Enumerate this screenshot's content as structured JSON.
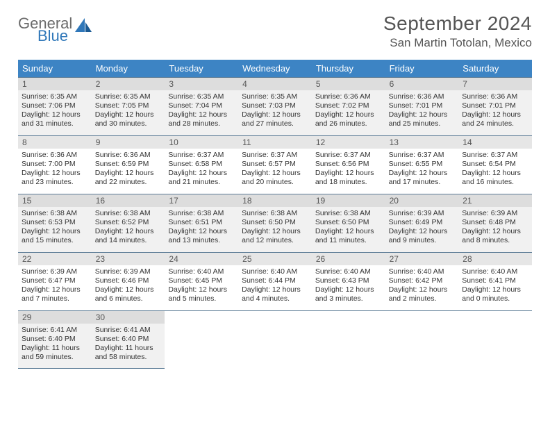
{
  "brand": {
    "word1": "General",
    "word2": "Blue"
  },
  "title": "September 2024",
  "location": "San Martin Totolan, Mexico",
  "day_headers": [
    "Sunday",
    "Monday",
    "Tuesday",
    "Wednesday",
    "Thursday",
    "Friday",
    "Saturday"
  ],
  "colors": {
    "header_bg": "#3d84c4",
    "border": "#5a7a95",
    "shaded": "#f1f1f1",
    "daynum_bg": "#e6e6e6",
    "daynum_bg_shaded": "#dddddd",
    "text": "#333333",
    "title_text": "#555555",
    "logo_gray": "#6a6a6a",
    "logo_blue": "#2f77b9"
  },
  "typography": {
    "title_fontsize": 28,
    "location_fontsize": 17,
    "header_fontsize": 13,
    "daynum_fontsize": 12,
    "detail_fontsize": 10.5
  },
  "layout": {
    "columns": 7,
    "rows": 5,
    "shaded_rows": [
      0,
      2,
      4
    ]
  },
  "days": [
    {
      "n": "1",
      "sr": "6:35 AM",
      "ss": "7:06 PM",
      "dh": "12",
      "dm": "31"
    },
    {
      "n": "2",
      "sr": "6:35 AM",
      "ss": "7:05 PM",
      "dh": "12",
      "dm": "30"
    },
    {
      "n": "3",
      "sr": "6:35 AM",
      "ss": "7:04 PM",
      "dh": "12",
      "dm": "28"
    },
    {
      "n": "4",
      "sr": "6:35 AM",
      "ss": "7:03 PM",
      "dh": "12",
      "dm": "27"
    },
    {
      "n": "5",
      "sr": "6:36 AM",
      "ss": "7:02 PM",
      "dh": "12",
      "dm": "26"
    },
    {
      "n": "6",
      "sr": "6:36 AM",
      "ss": "7:01 PM",
      "dh": "12",
      "dm": "25"
    },
    {
      "n": "7",
      "sr": "6:36 AM",
      "ss": "7:01 PM",
      "dh": "12",
      "dm": "24"
    },
    {
      "n": "8",
      "sr": "6:36 AM",
      "ss": "7:00 PM",
      "dh": "12",
      "dm": "23"
    },
    {
      "n": "9",
      "sr": "6:36 AM",
      "ss": "6:59 PM",
      "dh": "12",
      "dm": "22"
    },
    {
      "n": "10",
      "sr": "6:37 AM",
      "ss": "6:58 PM",
      "dh": "12",
      "dm": "21"
    },
    {
      "n": "11",
      "sr": "6:37 AM",
      "ss": "6:57 PM",
      "dh": "12",
      "dm": "20"
    },
    {
      "n": "12",
      "sr": "6:37 AM",
      "ss": "6:56 PM",
      "dh": "12",
      "dm": "18"
    },
    {
      "n": "13",
      "sr": "6:37 AM",
      "ss": "6:55 PM",
      "dh": "12",
      "dm": "17"
    },
    {
      "n": "14",
      "sr": "6:37 AM",
      "ss": "6:54 PM",
      "dh": "12",
      "dm": "16"
    },
    {
      "n": "15",
      "sr": "6:38 AM",
      "ss": "6:53 PM",
      "dh": "12",
      "dm": "15"
    },
    {
      "n": "16",
      "sr": "6:38 AM",
      "ss": "6:52 PM",
      "dh": "12",
      "dm": "14"
    },
    {
      "n": "17",
      "sr": "6:38 AM",
      "ss": "6:51 PM",
      "dh": "12",
      "dm": "13"
    },
    {
      "n": "18",
      "sr": "6:38 AM",
      "ss": "6:50 PM",
      "dh": "12",
      "dm": "12"
    },
    {
      "n": "19",
      "sr": "6:38 AM",
      "ss": "6:50 PM",
      "dh": "12",
      "dm": "11"
    },
    {
      "n": "20",
      "sr": "6:39 AM",
      "ss": "6:49 PM",
      "dh": "12",
      "dm": "9"
    },
    {
      "n": "21",
      "sr": "6:39 AM",
      "ss": "6:48 PM",
      "dh": "12",
      "dm": "8"
    },
    {
      "n": "22",
      "sr": "6:39 AM",
      "ss": "6:47 PM",
      "dh": "12",
      "dm": "7"
    },
    {
      "n": "23",
      "sr": "6:39 AM",
      "ss": "6:46 PM",
      "dh": "12",
      "dm": "6"
    },
    {
      "n": "24",
      "sr": "6:40 AM",
      "ss": "6:45 PM",
      "dh": "12",
      "dm": "5"
    },
    {
      "n": "25",
      "sr": "6:40 AM",
      "ss": "6:44 PM",
      "dh": "12",
      "dm": "4"
    },
    {
      "n": "26",
      "sr": "6:40 AM",
      "ss": "6:43 PM",
      "dh": "12",
      "dm": "3"
    },
    {
      "n": "27",
      "sr": "6:40 AM",
      "ss": "6:42 PM",
      "dh": "12",
      "dm": "2"
    },
    {
      "n": "28",
      "sr": "6:40 AM",
      "ss": "6:41 PM",
      "dh": "12",
      "dm": "0"
    },
    {
      "n": "29",
      "sr": "6:41 AM",
      "ss": "6:40 PM",
      "dh": "11",
      "dm": "59"
    },
    {
      "n": "30",
      "sr": "6:41 AM",
      "ss": "6:40 PM",
      "dh": "11",
      "dm": "58"
    }
  ]
}
